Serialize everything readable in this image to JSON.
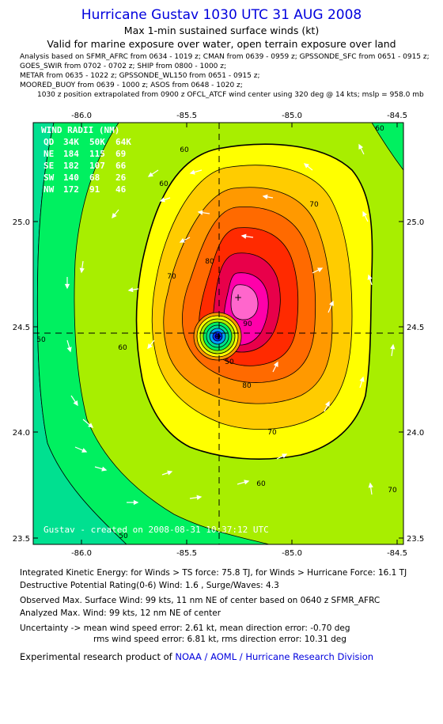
{
  "header": {
    "title": "Hurricane Gustav 1030 UTC 31 AUG 2008",
    "subtitle1": "Max 1-min sustained surface winds (kt)",
    "subtitle2": "Valid for marine exposure over water, open terrain exposure over land",
    "analysis_lines": [
      "Analysis based on   SFMR_AFRC from 0634 - 1019 z;  CMAN from 0639 - 0959 z;  GPSSONDE_SFC from 0651 - 0915 z;",
      "GOES_SWIR from 0702 - 0702 z;  SHIP from 0800 - 1000 z;",
      "METAR from 0635 - 1022 z;  GPSSONDE_WL150 from 0651 - 0915 z;",
      "MOORED_BUOY from 0639 - 1000 z;  ASOS from 0648 - 1020 z;"
    ],
    "extrapolation": "1030 z position extrapolated from 0900 z OFCL_ATCF wind center using 320 deg @ 14 kts; mslp = 958.0 mb"
  },
  "map": {
    "x_ticks": [
      "-86.0",
      "-85.5",
      "-85.0",
      "-84.5"
    ],
    "y_ticks": [
      "25.0",
      "24.5",
      "24.0",
      "23.5"
    ],
    "contour_labels": [
      "60",
      "60",
      "60",
      "60",
      "70",
      "70",
      "70",
      "80",
      "80",
      "90",
      "70",
      "50",
      "50",
      "60",
      "50"
    ],
    "wind_radii": {
      "title": "WIND RADII (NM)",
      "header": [
        "QD",
        "34K",
        "50K",
        "64K"
      ],
      "rows": [
        [
          "NE",
          "184",
          "115",
          "69"
        ],
        [
          "SE",
          "182",
          "107",
          "66"
        ],
        [
          "SW",
          "140",
          "68",
          "26"
        ],
        [
          "NW",
          "172",
          "91",
          "46"
        ]
      ]
    },
    "credit": "Gustav - created on 2008-08-31 10:37:12 UTC",
    "colors": {
      "teal": "#00e090",
      "green": "#00f060",
      "lime": "#a8ee00",
      "yellow": "#ffff00",
      "gold": "#ffcc00",
      "orange": "#ff9900",
      "dark_orange": "#ff6a00",
      "red": "#ff2a00",
      "crimson": "#e8004a",
      "magenta": "#ff00aa"
    }
  },
  "footer": {
    "ike": "Integrated Kinetic Energy:  for Winds > TS force: 75.8 TJ,  for Winds > Hurricane Force: 16.1 TJ",
    "dpr": "Destructive Potential Rating(0-6)   Wind: 1.6 , Surge/Waves: 4.3",
    "obs_max": "Observed Max. Surface Wind: 99 kts, 11 nm NE of center based on 0640 z SFMR_AFRC",
    "analyzed_max": "Analyzed Max. Wind: 99 kts, 12 nm NE of center",
    "uncertainty1": "Uncertainty -> mean wind speed error: 2.61 kt,   mean direction error:  -0.70 deg",
    "uncertainty2": "rms wind speed error: 6.81 kt,   rms direction error: 10.31 deg",
    "credit_prefix": "Experimental research product of ",
    "credit_org": "NOAA / AOML / Hurricane Research Division"
  }
}
